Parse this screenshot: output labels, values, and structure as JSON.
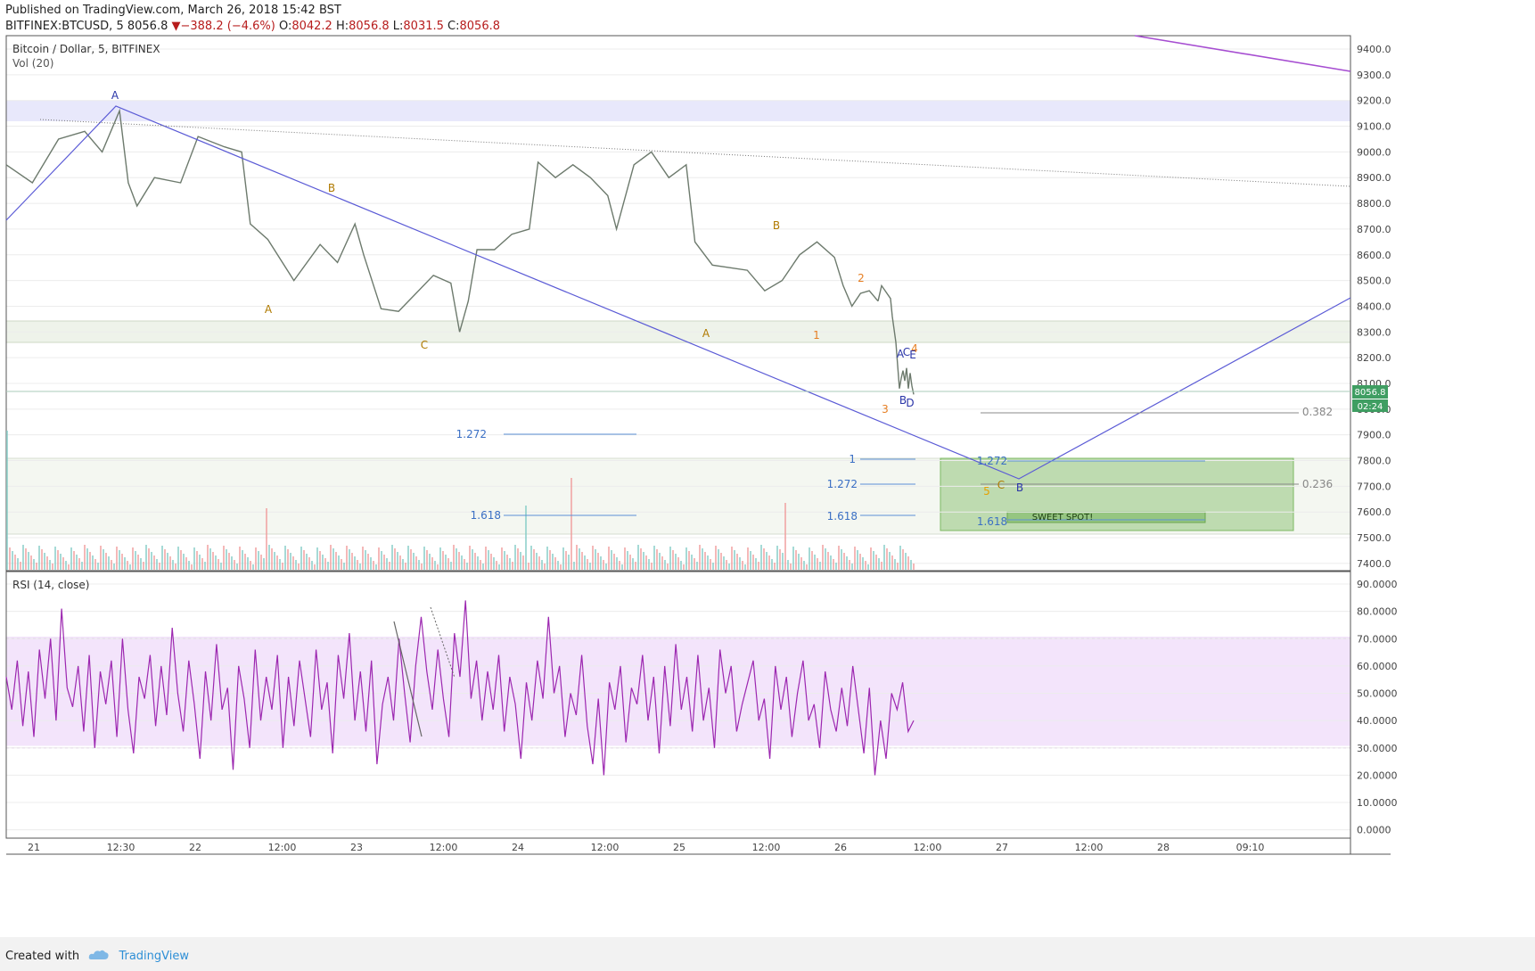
{
  "header": {
    "published": "Published on TradingView.com, March 26, 2018 15:42 BST",
    "symbol": "BITFINEX:BTCUSD, 5",
    "last": "8056.8",
    "change_arrow": "▼",
    "change": "−388.2 (−4.6%)",
    "o_label": "O:",
    "o": "8042.2",
    "h_label": "H:",
    "h": "8056.8",
    "l_label": "L:",
    "l": "8031.5",
    "c_label": "C:",
    "c": "8056.8"
  },
  "footer": {
    "created": "Created with",
    "brand": "TradingView",
    "logo_icon": "tradingview-cloud-icon"
  },
  "chart_data": [
    {
      "type": "line",
      "title": "Bitcoin / Dollar, 5, BITFINEX",
      "subtitle": "Vol (20)",
      "ylim": [
        7360,
        9460
      ],
      "y_ticks": [
        "9400.0",
        "9300.0",
        "9200.0",
        "9100.0",
        "9000.0",
        "8900.0",
        "8800.0",
        "8700.0",
        "8600.0",
        "8500.0",
        "8400.0",
        "8300.0",
        "8200.0",
        "8100.0",
        "8000.0",
        "7900.0",
        "7800.0",
        "7700.0",
        "7600.0",
        "7500.0",
        "7400.0"
      ],
      "x_ticks": [
        "21",
        "12:30",
        "22",
        "12:00",
        "23",
        "12:00",
        "24",
        "12:00",
        "25",
        "12:00",
        "26",
        "12:00",
        "27",
        "12:00",
        "28",
        "09:10"
      ],
      "price_path": [
        [
          0,
          8950
        ],
        [
          0.03,
          8880
        ],
        [
          0.06,
          9050
        ],
        [
          0.09,
          9080
        ],
        [
          0.11,
          9000
        ],
        [
          0.13,
          9160
        ],
        [
          0.14,
          8880
        ],
        [
          0.15,
          8790
        ],
        [
          0.17,
          8900
        ],
        [
          0.2,
          8880
        ],
        [
          0.22,
          9060
        ],
        [
          0.25,
          9020
        ],
        [
          0.27,
          9000
        ],
        [
          0.28,
          8720
        ],
        [
          0.3,
          8660
        ],
        [
          0.33,
          8500
        ],
        [
          0.36,
          8640
        ],
        [
          0.38,
          8570
        ],
        [
          0.4,
          8720
        ],
        [
          0.41,
          8600
        ],
        [
          0.43,
          8390
        ],
        [
          0.45,
          8380
        ],
        [
          0.47,
          8450
        ],
        [
          0.49,
          8520
        ],
        [
          0.51,
          8490
        ],
        [
          0.52,
          8300
        ],
        [
          0.53,
          8420
        ],
        [
          0.54,
          8620
        ],
        [
          0.56,
          8620
        ],
        [
          0.58,
          8680
        ],
        [
          0.6,
          8700
        ],
        [
          0.61,
          8960
        ],
        [
          0.63,
          8900
        ],
        [
          0.65,
          8950
        ],
        [
          0.67,
          8900
        ],
        [
          0.69,
          8830
        ],
        [
          0.7,
          8700
        ],
        [
          0.72,
          8950
        ],
        [
          0.74,
          9000
        ],
        [
          0.76,
          8900
        ],
        [
          0.78,
          8950
        ],
        [
          0.79,
          8650
        ],
        [
          0.81,
          8560
        ],
        [
          0.83,
          8550
        ],
        [
          0.85,
          8540
        ],
        [
          0.87,
          8460
        ],
        [
          0.89,
          8500
        ],
        [
          0.91,
          8600
        ],
        [
          0.93,
          8650
        ],
        [
          0.95,
          8590
        ],
        [
          0.96,
          8480
        ],
        [
          0.97,
          8400
        ],
        [
          0.98,
          8450
        ],
        [
          0.99,
          8460
        ],
        [
          1.0,
          8420
        ]
      ],
      "price_path_b": [
        [
          0,
          8420
        ],
        [
          0.1,
          8480
        ],
        [
          0.2,
          8460
        ],
        [
          0.35,
          8430
        ],
        [
          0.4,
          8360
        ],
        [
          0.5,
          8260
        ],
        [
          0.55,
          8170
        ],
        [
          0.6,
          8080
        ],
        [
          0.65,
          8120
        ],
        [
          0.7,
          8150
        ],
        [
          0.75,
          8110
        ],
        [
          0.8,
          8160
        ],
        [
          0.85,
          8080
        ],
        [
          0.9,
          8140
        ],
        [
          0.95,
          8090
        ],
        [
          1.0,
          8057
        ]
      ],
      "last_price": "8056.8",
      "countdown": "02:24",
      "wave_labels": [
        {
          "text": "A",
          "color": "#2a35a8"
        },
        {
          "text": "B",
          "color": "#b07a00"
        },
        {
          "text": "A",
          "color": "#b07a00"
        },
        {
          "text": "C",
          "color": "#b07a00"
        },
        {
          "text": "A",
          "color": "#b07a00"
        },
        {
          "text": "B",
          "color": "#b07a00"
        },
        {
          "text": "1",
          "color": "#e67e22"
        },
        {
          "text": "2",
          "color": "#e67e22"
        },
        {
          "text": "3",
          "color": "#e67e22"
        },
        {
          "text": "4",
          "color": "#e67e22"
        },
        {
          "text": "A",
          "color": "#2a35a8"
        },
        {
          "text": "C",
          "color": "#2a35a8"
        },
        {
          "text": "E",
          "color": "#2a35a8"
        },
        {
          "text": "B",
          "color": "#2a35a8"
        },
        {
          "text": "D",
          "color": "#2a35a8"
        },
        {
          "text": "5",
          "color": "#e6a100"
        },
        {
          "text": "C",
          "color": "#b07a00"
        },
        {
          "text": "B",
          "color": "#2a35a8"
        }
      ],
      "fib_labels": [
        {
          "text": "1.272",
          "price": 7893
        },
        {
          "text": "1.618",
          "price": 7577
        },
        {
          "text": "1",
          "price": 7792
        },
        {
          "text": "1.272",
          "price": 7697
        },
        {
          "text": "1.618",
          "price": 7575
        },
        {
          "text": "1.272",
          "price": 7786
        },
        {
          "text": "1.618",
          "price": 7546
        },
        {
          "text": "0.382",
          "price": 7877
        },
        {
          "text": "0.236",
          "price": 7697
        }
      ],
      "annotation": "SWEET SPOT!",
      "colors": {
        "up": "#26a69a",
        "down": "#ef5350",
        "wave": "#5b5bd6",
        "resistance": "#a64dd1",
        "zone": "#7cb862"
      }
    },
    {
      "type": "line",
      "title": "RSI (14, close)",
      "ylim": [
        0,
        93
      ],
      "y_ticks": [
        "90.0000",
        "80.0000",
        "70.0000",
        "60.0000",
        "50.0000",
        "40.0000",
        "30.0000",
        "20.0000",
        "10.0000",
        "0.0000"
      ],
      "band": [
        30,
        70
      ],
      "values": [
        56,
        44,
        62,
        38,
        58,
        34,
        66,
        48,
        70,
        40,
        81,
        52,
        45,
        60,
        36,
        64,
        30,
        58,
        46,
        62,
        34,
        70,
        44,
        28,
        56,
        48,
        64,
        38,
        60,
        42,
        74,
        50,
        36,
        62,
        46,
        26,
        58,
        40,
        68,
        44,
        52,
        22,
        60,
        48,
        30,
        66,
        40,
        56,
        44,
        64,
        30,
        56,
        38,
        62,
        48,
        34,
        66,
        44,
        54,
        28,
        64,
        48,
        72,
        40,
        58,
        36,
        62,
        24,
        46,
        56,
        40,
        70,
        50,
        32,
        60,
        78,
        58,
        44,
        66,
        48,
        34,
        72,
        56,
        84,
        48,
        62,
        40,
        58,
        44,
        64,
        36,
        56,
        46,
        26,
        54,
        40,
        62,
        48,
        78,
        50,
        60,
        34,
        50,
        42,
        64,
        38,
        24,
        48,
        20,
        54,
        44,
        60,
        32,
        52,
        46,
        64,
        40,
        56,
        28,
        60,
        38,
        68,
        44,
        56,
        36,
        64,
        40,
        52,
        30,
        66,
        50,
        60,
        36,
        46,
        54,
        62,
        40,
        48,
        26,
        60,
        44,
        56,
        34,
        50,
        62,
        40,
        46,
        30,
        58,
        44,
        36,
        52,
        38,
        60,
        44,
        28,
        52,
        20,
        40,
        26,
        50,
        44,
        54,
        36,
        40
      ]
    }
  ]
}
